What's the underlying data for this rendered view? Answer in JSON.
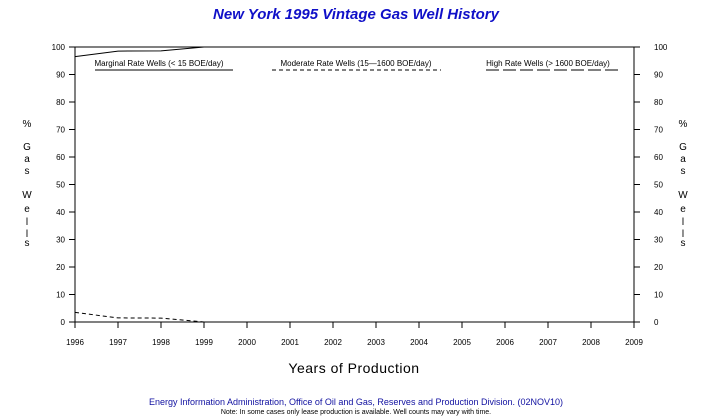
{
  "chart_data": {
    "type": "line",
    "title": "New York 1995 Vintage Gas Well History",
    "xlabel": "Years of Production",
    "ylabel_left": [
      "%",
      "G",
      "a",
      "s",
      "W",
      "e",
      "l",
      "l",
      "s"
    ],
    "ylabel_right": [
      "%",
      "G",
      "a",
      "s",
      "W",
      "e",
      "l",
      "l",
      "s"
    ],
    "x_ticks": [
      "1996",
      "1997",
      "1998",
      "1999",
      "2000",
      "2001",
      "2002",
      "2003",
      "2004",
      "2005",
      "2006",
      "2007",
      "2008",
      "2009"
    ],
    "y_ticks": [
      0,
      10,
      20,
      30,
      40,
      50,
      60,
      70,
      80,
      90,
      100
    ],
    "ylim": [
      0,
      100
    ],
    "xlim": [
      1996,
      2009
    ],
    "grid": false,
    "legend_position": "top",
    "series": [
      {
        "name": "Marginal Rate Wells (<  15 BOE/day)",
        "style": "solid",
        "x": [
          1996,
          1997,
          1998,
          1999,
          2000,
          2001,
          2002,
          2003,
          2004,
          2005,
          2006,
          2007,
          2008,
          2009
        ],
        "values": [
          96.5,
          98.5,
          98.6,
          100,
          100,
          100,
          100,
          100,
          100,
          100,
          100,
          100,
          100,
          100
        ]
      },
      {
        "name": "Moderate Rate Wells (15—1600 BOE/day)",
        "style": "short-dash",
        "x": [
          1996,
          1997,
          1998,
          1999,
          2000,
          2001,
          2002,
          2003,
          2004,
          2005,
          2006,
          2007,
          2008,
          2009
        ],
        "values": [
          3.5,
          1.5,
          1.4,
          0,
          0,
          0,
          0,
          0,
          0,
          0,
          0,
          0,
          0,
          0
        ]
      },
      {
        "name": "High Rate Wells (> 1600 BOE/day)",
        "style": "long-dash",
        "x": [
          1996,
          1997,
          1998,
          1999,
          2000,
          2001,
          2002,
          2003,
          2004,
          2005,
          2006,
          2007,
          2008,
          2009
        ],
        "values": [
          0,
          0,
          0,
          0,
          0,
          0,
          0,
          0,
          0,
          0,
          0,
          0,
          0,
          0
        ]
      }
    ]
  },
  "footer": {
    "source": "Energy Information Administration, Office of Oil and Gas, Reserves and Production Division. (02NOV10)",
    "note": "Note: In some cases only lease production is available. Well counts may vary with time."
  }
}
